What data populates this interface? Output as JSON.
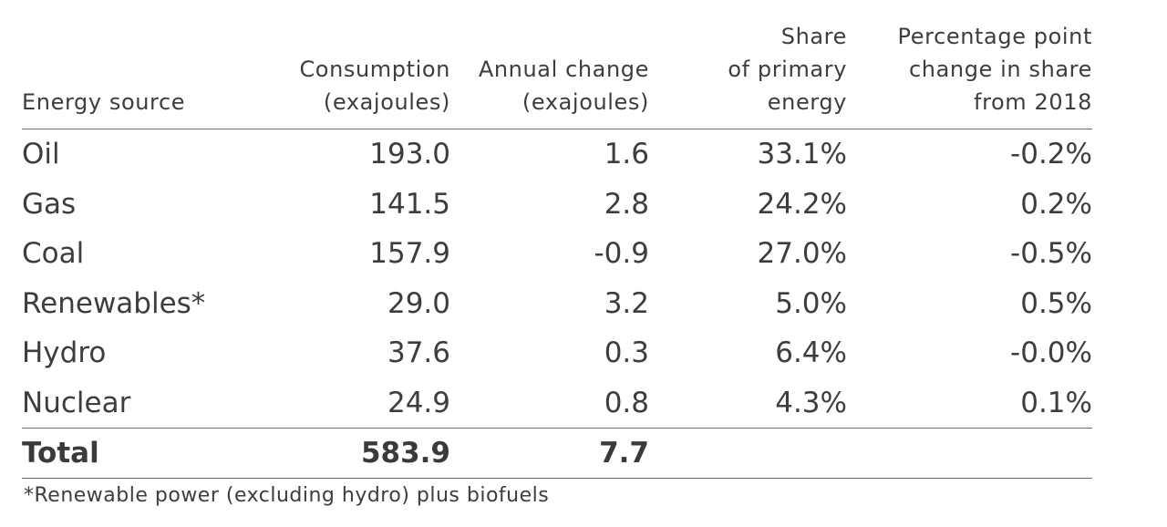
{
  "chart_data": {
    "type": "table",
    "columns": [
      [
        "Energy source"
      ],
      [
        "Consumption",
        "(exajoules)"
      ],
      [
        "Annual change",
        "(exajoules)"
      ],
      [
        "Share",
        "of primary",
        "energy"
      ],
      [
        "Percentage point",
        "change in share",
        "from 2018"
      ]
    ],
    "rows": [
      [
        "Oil",
        "193.0",
        "1.6",
        "33.1%",
        "-0.2%"
      ],
      [
        "Gas",
        "141.5",
        "2.8",
        "24.2%",
        "0.2%"
      ],
      [
        "Coal",
        "157.9",
        "-0.9",
        "27.0%",
        "-0.5%"
      ],
      [
        "Renewables*",
        "29.0",
        "3.2",
        "5.0%",
        "0.5%"
      ],
      [
        "Hydro",
        "37.6",
        "0.3",
        "6.4%",
        "-0.0%"
      ],
      [
        "Nuclear",
        "24.9",
        "0.8",
        "4.3%",
        "0.1%"
      ]
    ],
    "total": [
      "Total",
      "583.9",
      "7.7",
      "",
      ""
    ],
    "footnote": "*Renewable power (excluding hydro) plus biofuels"
  }
}
